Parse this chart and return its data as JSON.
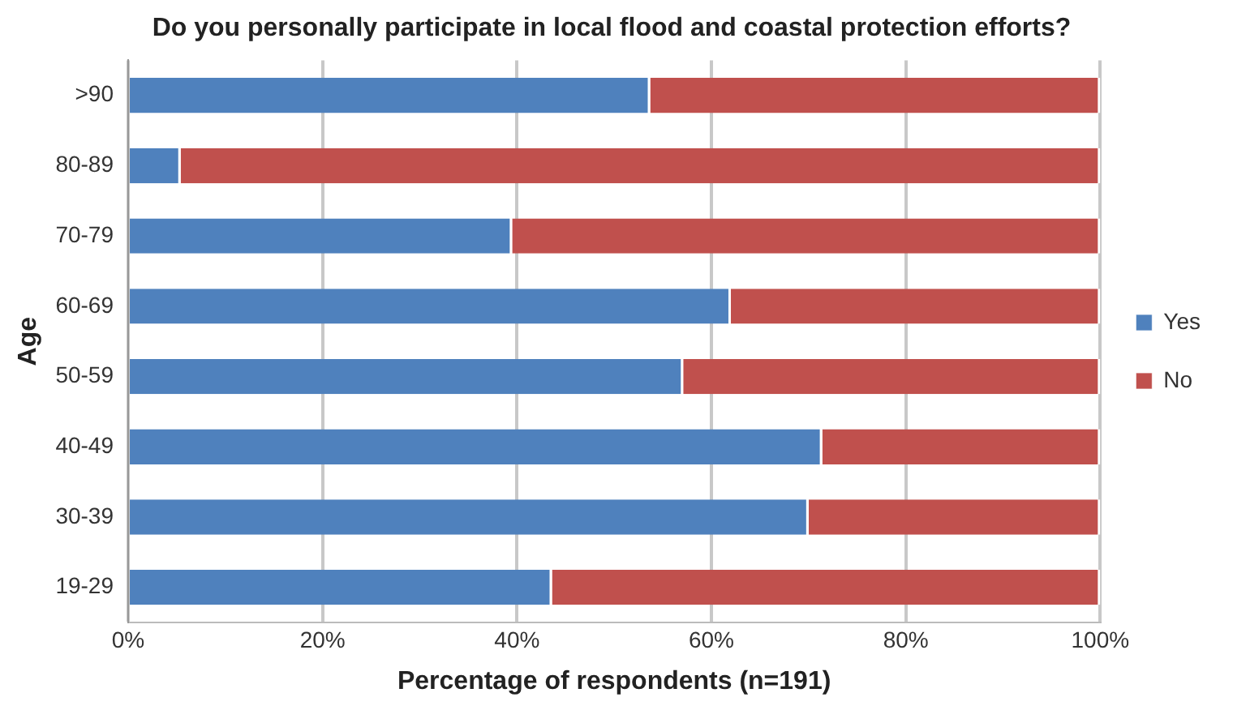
{
  "chart_data": {
    "type": "bar",
    "orientation": "horizontal",
    "stacked": true,
    "title": "Do you personally participate in local flood and coastal protection efforts?",
    "xlabel": "Percentage of respondents (n=191)",
    "ylabel": "Age",
    "categories": [
      ">90",
      "80-89",
      "70-79",
      "60-69",
      "50-59",
      "40-49",
      "30-39",
      "19-29"
    ],
    "series": [
      {
        "name": "Yes",
        "color": "#4f81bd",
        "values": [
          53.7,
          5.4,
          39.5,
          62,
          57.1,
          71.4,
          70,
          43.6
        ]
      },
      {
        "name": "No",
        "color": "#c0504d",
        "values": [
          46.3,
          94.6,
          60.5,
          38,
          42.9,
          28.6,
          30,
          56.4
        ]
      }
    ],
    "xlim": [
      0,
      100
    ],
    "xticks": [
      {
        "value": 0,
        "label": "0%"
      },
      {
        "value": 20,
        "label": "20%"
      },
      {
        "value": 40,
        "label": "40%"
      },
      {
        "value": 60,
        "label": "60%"
      },
      {
        "value": 80,
        "label": "80%"
      },
      {
        "value": 100,
        "label": "100%"
      }
    ],
    "grid": "x",
    "legend": "right"
  }
}
